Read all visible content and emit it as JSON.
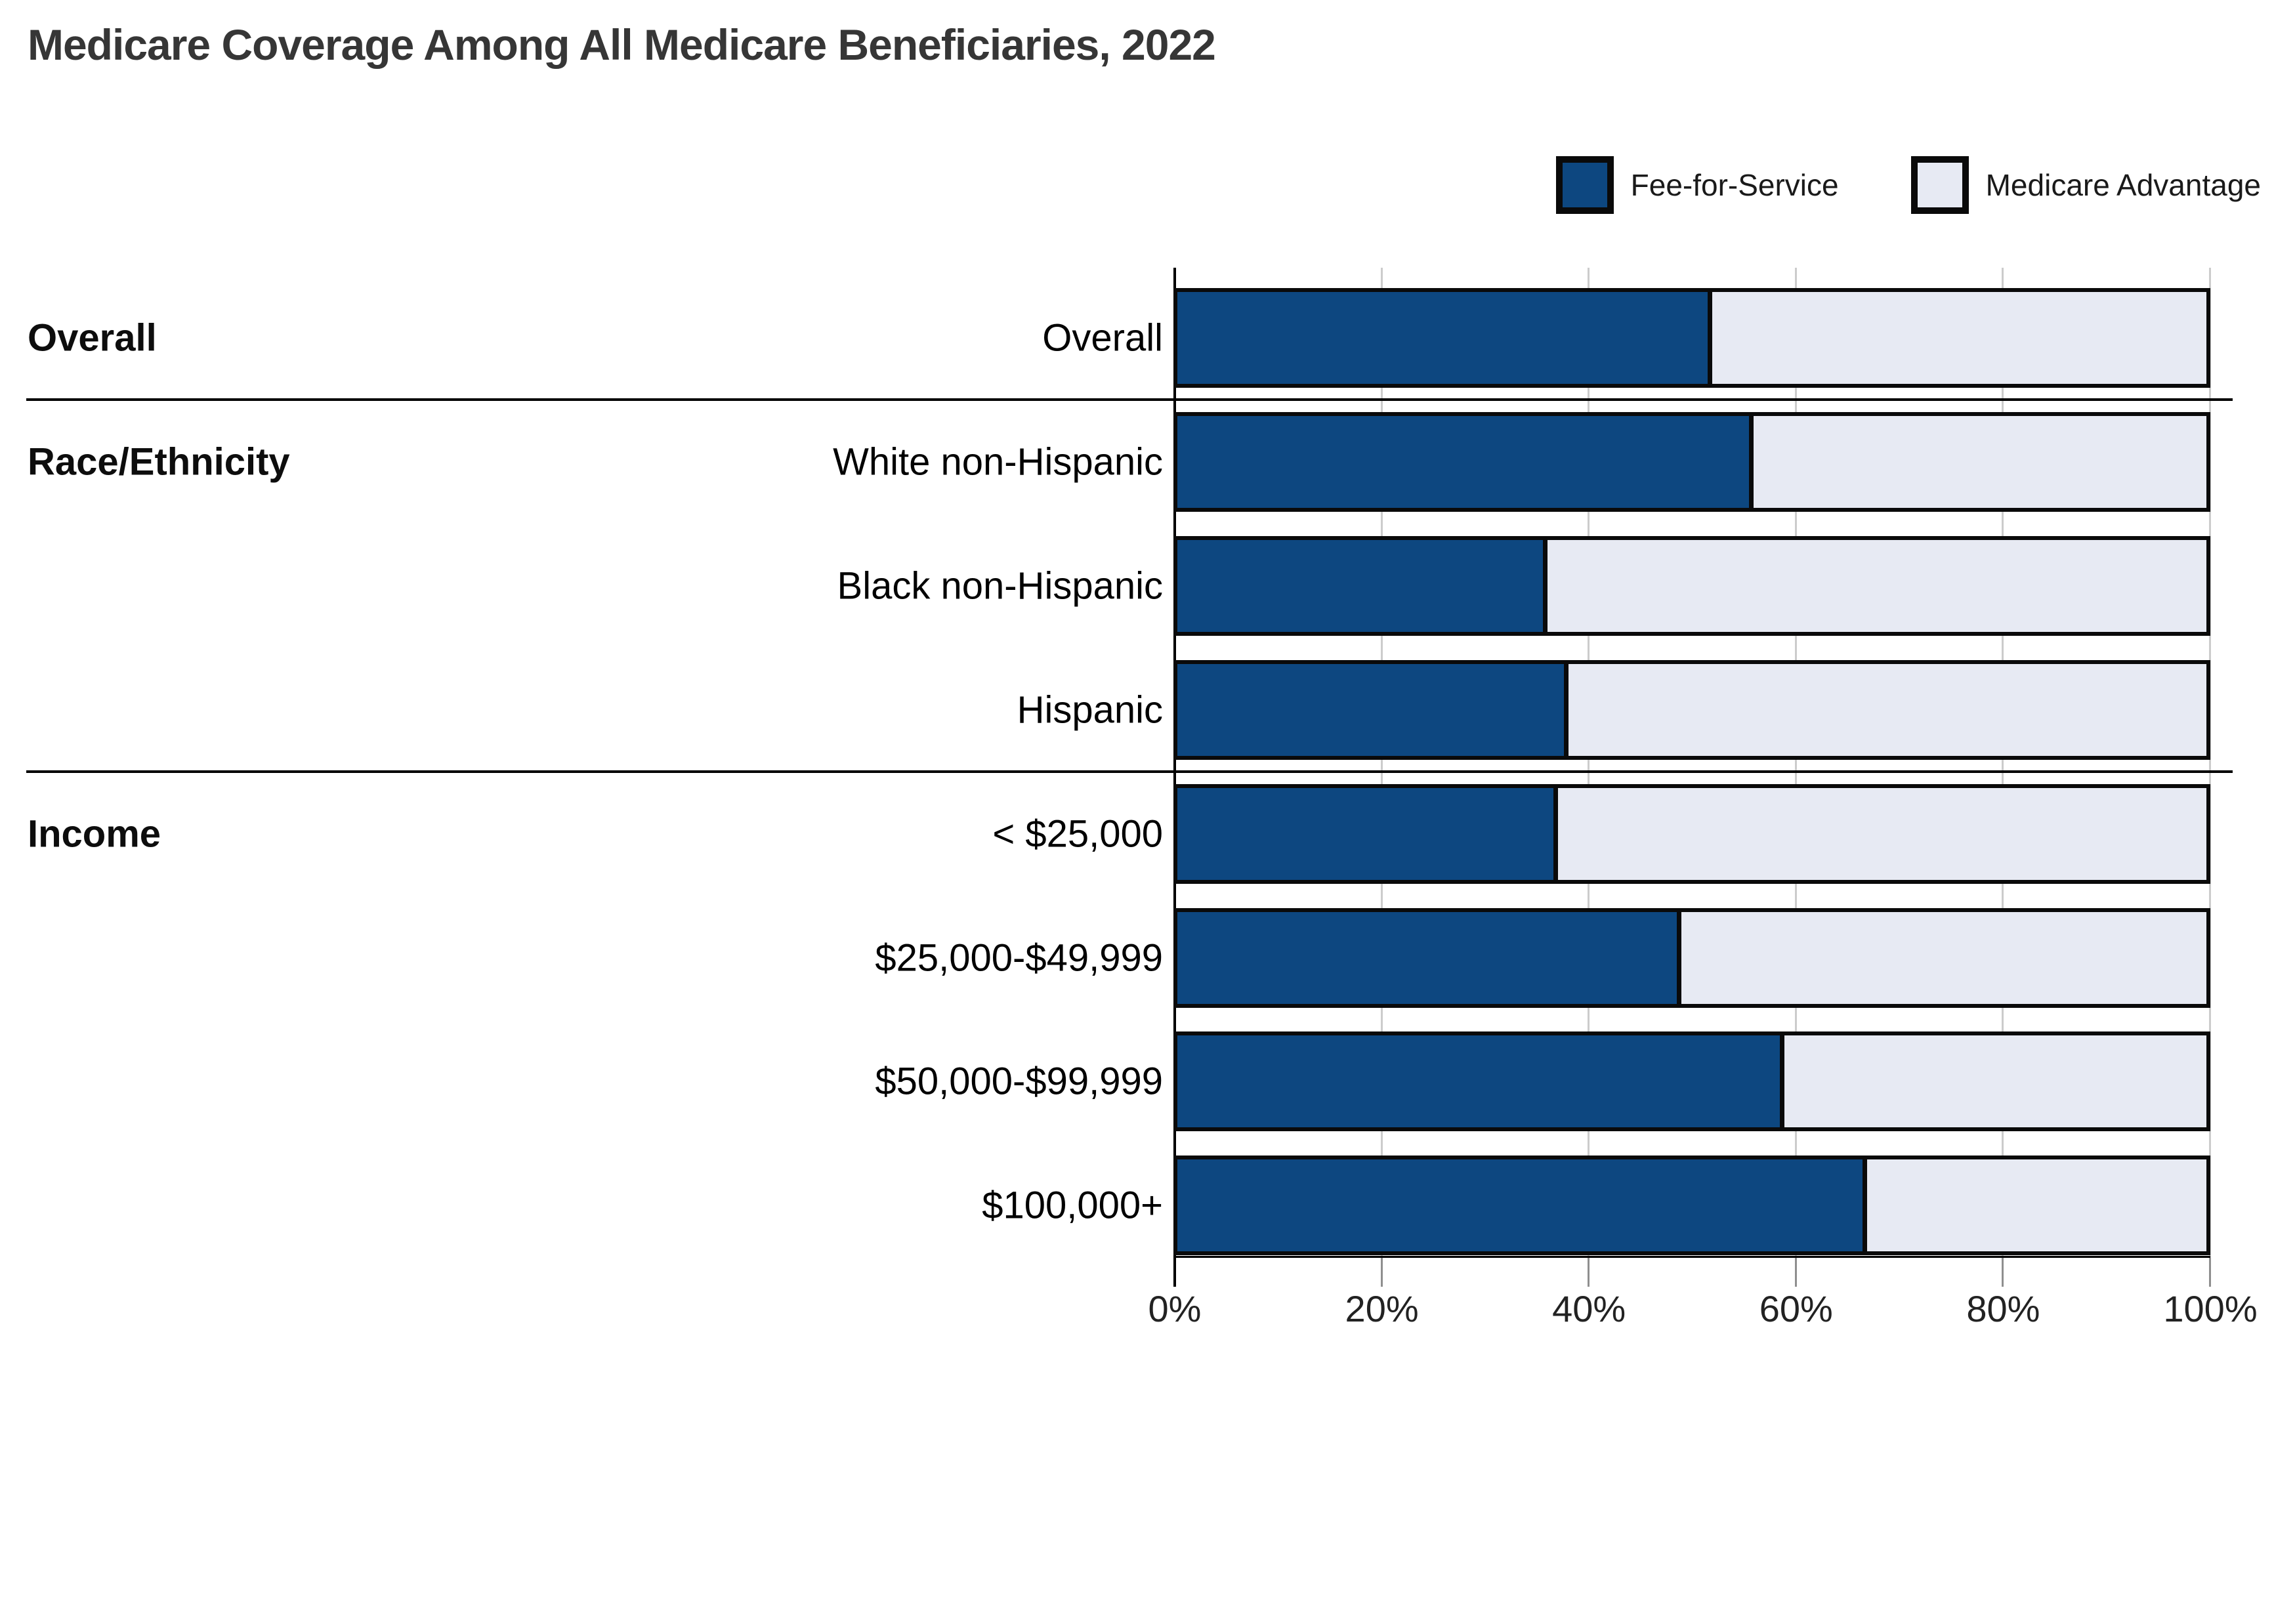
{
  "title": "Medicare Coverage Among All Medicare Beneficiaries, 2022",
  "colors": {
    "fee_for_service": "#0d4780",
    "medicare_advantage": "#e7eaf3",
    "bar_border": "#0a0a0a",
    "gridline": "#cccccc",
    "axis": "#000000",
    "title_text": "#363636"
  },
  "legend": {
    "items": [
      {
        "label": "Fee-for-Service",
        "color_key": "fee_for_service"
      },
      {
        "label": "Medicare Advantage",
        "color_key": "medicare_advantage"
      }
    ]
  },
  "chart_data": {
    "type": "bar",
    "stacked": true,
    "orientation": "horizontal",
    "unit": "%",
    "xlim": [
      0,
      100
    ],
    "x_ticks": [
      "0%",
      "20%",
      "40%",
      "60%",
      "80%",
      "100%"
    ],
    "grid": true,
    "legend_position": "top-right",
    "categories": [
      "Overall",
      "White non-Hispanic",
      "Black non-Hispanic",
      "Hispanic",
      "< $25,000",
      "$25,000-$49,999",
      "$50,000-$99,999",
      "$100,000+"
    ],
    "series": [
      {
        "name": "Fee-for-Service",
        "values": [
          52,
          56,
          36,
          38,
          37,
          49,
          59,
          67
        ]
      },
      {
        "name": "Medicare Advantage",
        "values": [
          48,
          44,
          64,
          62,
          63,
          51,
          41,
          33
        ]
      }
    ],
    "sections": [
      {
        "label": "Overall",
        "start_row": 0
      },
      {
        "label": "Race/Ethnicity",
        "start_row": 1
      },
      {
        "label": "Income",
        "start_row": 4
      }
    ],
    "separators_after_rows": [
      0,
      3
    ]
  }
}
